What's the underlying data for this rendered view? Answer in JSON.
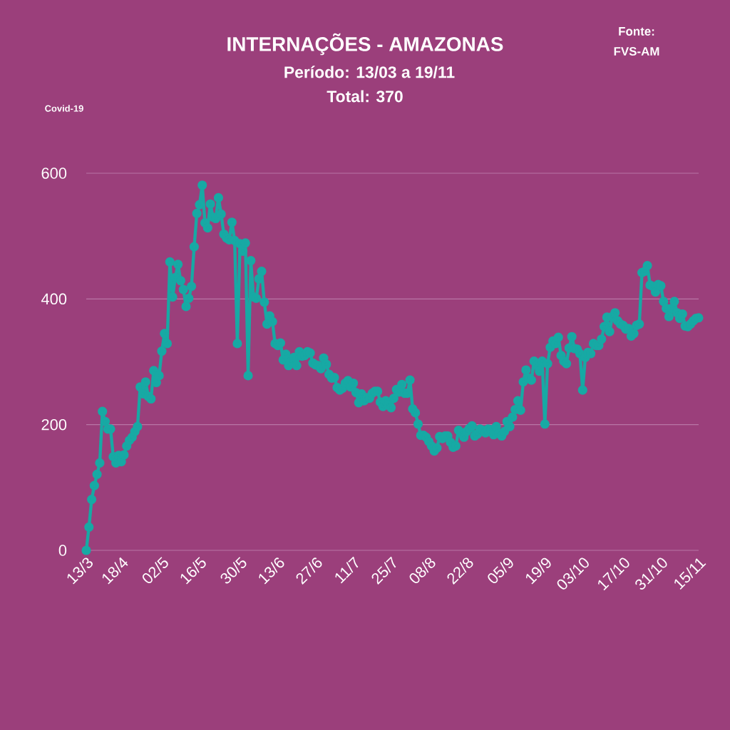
{
  "chart_data": {
    "type": "line",
    "title": "INTERNAÇÕES - AMAZONAS",
    "subtitle": "Período: 13/03 a 19/11",
    "annotations": [
      "Total: 370",
      "Fonte:",
      "FVS-AM",
      "Covid-19"
    ],
    "categories": [
      "13/3",
      null,
      null,
      null,
      null,
      null,
      null,
      null,
      null,
      null,
      null,
      null,
      null,
      "18/4",
      null,
      null,
      null,
      null,
      null,
      null,
      null,
      null,
      null,
      null,
      null,
      null,
      null,
      null,
      "02/5",
      null,
      null,
      null,
      null,
      null,
      null,
      null,
      null,
      null,
      null,
      null,
      null,
      null,
      "16/5",
      null,
      null,
      null,
      null,
      null,
      null,
      null,
      null,
      null,
      null,
      null,
      null,
      null,
      null,
      "30/5",
      null,
      null,
      null,
      null,
      null,
      null,
      null,
      null,
      null,
      null,
      null,
      null,
      null,
      "13/6",
      null,
      null,
      null,
      null,
      null,
      null,
      null,
      null,
      null,
      null,
      null,
      null,
      null,
      "27/6",
      null,
      null,
      null,
      null,
      null,
      null,
      null,
      null,
      null,
      null,
      null,
      null,
      null,
      "11/7",
      null,
      null,
      null,
      null,
      null,
      null,
      null,
      null,
      null,
      null,
      null,
      null,
      null,
      "25/7",
      null,
      null,
      null,
      null,
      null,
      null,
      null,
      null,
      null,
      null,
      null,
      null,
      null,
      "08/8",
      null,
      null,
      null,
      null,
      null,
      null,
      null,
      null,
      null,
      null,
      null,
      null,
      null,
      "22/8",
      null,
      null,
      null,
      null,
      null,
      null,
      null,
      null,
      null,
      null,
      null,
      null,
      null,
      null,
      "05/9",
      null,
      null,
      null,
      null,
      null,
      null,
      null,
      null,
      null,
      null,
      null,
      null,
      null,
      "19/9",
      null,
      null,
      null,
      null,
      null,
      null,
      null,
      null,
      null,
      null,
      null,
      null,
      null,
      "03/10",
      null,
      null,
      null,
      null,
      null,
      null,
      null,
      null,
      null,
      null,
      null,
      null,
      null,
      null,
      "17/10",
      null,
      null,
      null,
      null,
      null,
      null,
      null,
      null,
      null,
      null,
      null,
      null,
      null,
      "31/10",
      null,
      null,
      null,
      null,
      null,
      null,
      null,
      null,
      null,
      null,
      null,
      null,
      null,
      "15/11"
    ],
    "series": [
      {
        "color": "#17a9a4",
        "values": [
          0,
          37,
          81,
          103,
          121,
          139,
          221,
          205,
          193,
          193,
          149,
          139,
          151,
          141,
          152,
          166,
          175,
          180,
          189,
          197,
          260,
          249,
          268,
          245,
          241,
          286,
          267,
          278,
          317,
          345,
          329,
          459,
          403,
          434,
          455,
          429,
          415,
          388,
          401,
          420,
          483,
          536,
          550,
          581,
          521,
          513,
          551,
          530,
          528,
          561,
          535,
          503,
          497,
          494,
          522,
          493,
          329,
          488,
          476,
          489,
          278,
          461,
          403,
          401,
          432,
          444,
          395,
          360,
          373,
          364,
          329,
          326,
          330,
          303,
          312,
          294,
          301,
          307,
          294,
          316,
          309,
          310,
          316,
          314,
          298,
          295,
          294,
          289,
          306,
          296,
          280,
          274,
          275,
          259,
          255,
          258,
          266,
          270,
          260,
          266,
          251,
          235,
          249,
          238,
          243,
          242,
          250,
          253,
          253,
          236,
          229,
          238,
          231,
          227,
          242,
          256,
          252,
          264,
          250,
          250,
          271,
          225,
          219,
          201,
          183,
          183,
          180,
          173,
          166,
          158,
          163,
          181,
          178,
          182,
          182,
          172,
          164,
          166,
          191,
          187,
          180,
          189,
          194,
          198,
          182,
          185,
          193,
          191,
          187,
          193,
          192,
          184,
          197,
          186,
          182,
          189,
          205,
          197,
          212,
          224,
          238,
          223,
          268,
          287,
          274,
          271,
          301,
          294,
          285,
          301,
          201,
          297,
          323,
          333,
          329,
          339,
          310,
          301,
          297,
          322,
          340,
          321,
          320,
          313,
          255,
          307,
          315,
          313,
          329,
          326,
          326,
          336,
          356,
          371,
          348,
          372,
          378,
          365,
          360,
          358,
          352,
          353,
          341,
          345,
          358,
          360,
          442,
          444,
          453,
          422,
          420,
          411,
          423,
          421,
          396,
          385,
          372,
          385,
          396,
          378,
          369,
          376,
          357,
          356,
          360,
          365,
          369,
          370
        ]
      }
    ],
    "ylim": [
      0,
      600
    ],
    "yticks": [
      0,
      200,
      400,
      600
    ],
    "grid": "y",
    "marker": "circle",
    "line_style": "solid"
  }
}
